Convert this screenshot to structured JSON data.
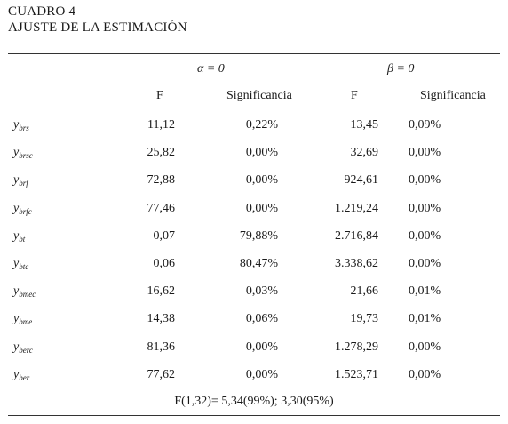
{
  "title_line1": "CUADRO 4",
  "title_line2": "AJUSTE DE LA ESTIMACIÓN",
  "group_headers": [
    "α = 0",
    "β = 0"
  ],
  "column_headers": [
    "F",
    "Significancia",
    "F",
    "Significancia"
  ],
  "rows": [
    {
      "var": "y",
      "sub": "brs",
      "f1": "11,12",
      "s1": "0,22%",
      "f2": "13,45",
      "s2": "0,09%"
    },
    {
      "var": "y",
      "sub": "brsc",
      "f1": "25,82",
      "s1": "0,00%",
      "f2": "32,69",
      "s2": "0,00%"
    },
    {
      "var": "y",
      "sub": "brf",
      "f1": "72,88",
      "s1": "0,00%",
      "f2": "924,61",
      "s2": "0,00%"
    },
    {
      "var": "y",
      "sub": "brfc",
      "f1": "77,46",
      "s1": "0,00%",
      "f2": "1.219,24",
      "s2": "0,00%"
    },
    {
      "var": "y",
      "sub": "bt",
      "f1": "0,07",
      "s1": "79,88%",
      "f2": "2.716,84",
      "s2": "0,00%"
    },
    {
      "var": "y",
      "sub": "btc",
      "f1": "0,06",
      "s1": "80,47%",
      "f2": "3.338,62",
      "s2": "0,00%"
    },
    {
      "var": "y",
      "sub": "bmec",
      "f1": "16,62",
      "s1": "0,03%",
      "f2": "21,66",
      "s2": "0,01%"
    },
    {
      "var": "y",
      "sub": "bme",
      "f1": "14,38",
      "s1": "0,06%",
      "f2": "19,73",
      "s2": "0,01%"
    },
    {
      "var": "y",
      "sub": "berc",
      "f1": "81,36",
      "s1": "0,00%",
      "f2": "1.278,29",
      "s2": "0,00%"
    },
    {
      "var": "y",
      "sub": "ber",
      "f1": "77,62",
      "s1": "0,00%",
      "f2": "1.523,71",
      "s2": "0,00%"
    }
  ],
  "footnote": "F(1,32)= 5,34(99%); 3,30(95%)"
}
